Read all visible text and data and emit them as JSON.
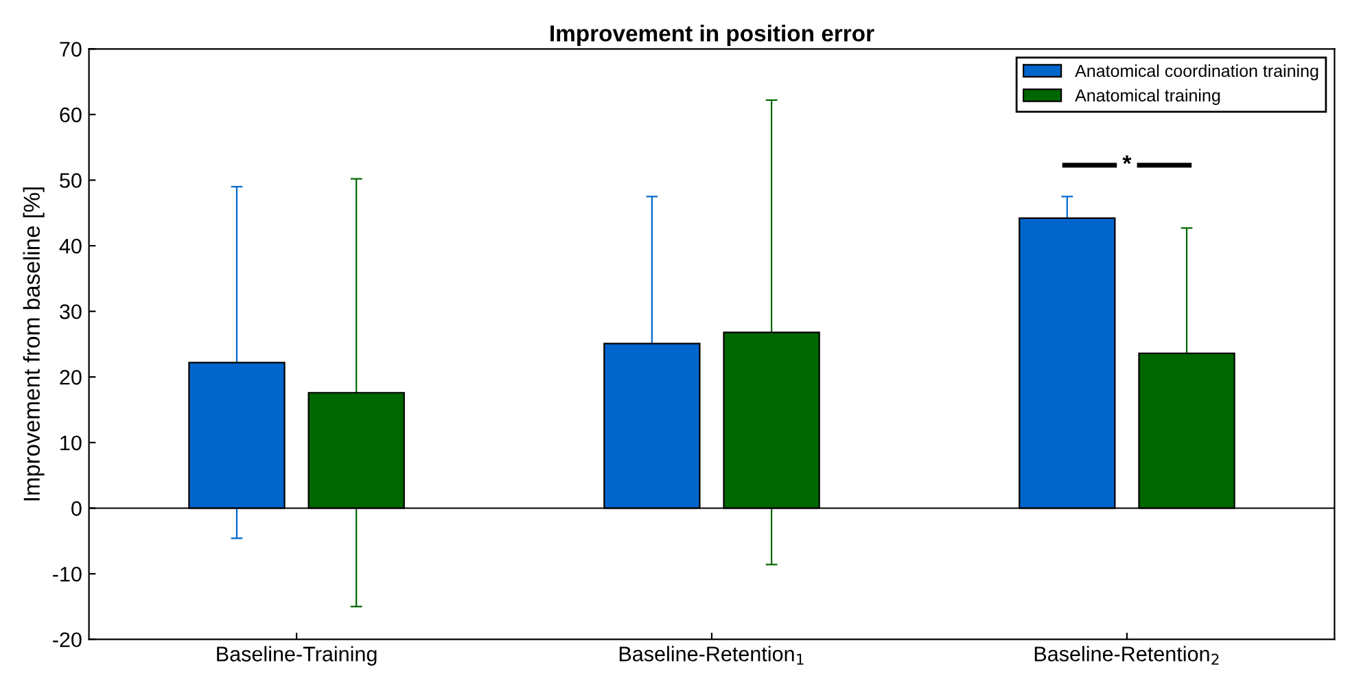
{
  "chart_data": {
    "type": "bar",
    "title": "Improvement in position error",
    "ylabel": "Improvement from baseline [%]",
    "categories": [
      "Baseline-Training",
      "Baseline-Retention$_{1}$",
      "Baseline-Retention$_{2}$"
    ],
    "series": [
      {
        "name": "Anatomical coordination training",
        "color": "#0066cc",
        "values": [
          22.2,
          25.1,
          44.2
        ],
        "errors": [
          26.8,
          22.4,
          3.3
        ]
      },
      {
        "name": "Anatomical training",
        "color": "#006600",
        "values": [
          17.6,
          26.8,
          23.6
        ],
        "errors": [
          32.6,
          35.4,
          19.1
        ]
      }
    ],
    "ylim": [
      -20,
      70
    ],
    "yticks": [
      -20,
      -10,
      0,
      10,
      20,
      30,
      40,
      50,
      60,
      70
    ],
    "annotations": [
      "*"
    ],
    "ref_lines": [
      {
        "axis": "y",
        "value": 0
      }
    ],
    "legend": "top right"
  }
}
